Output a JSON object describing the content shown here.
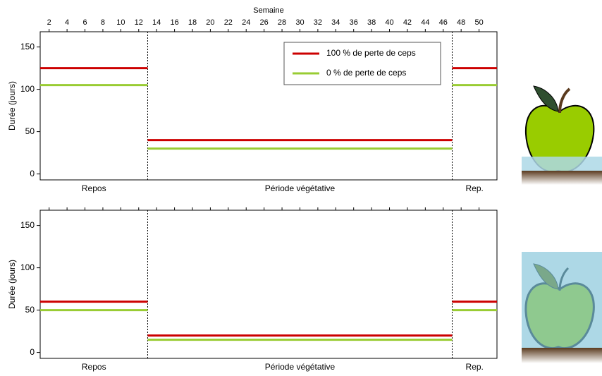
{
  "chart_data": [
    {
      "type": "line",
      "xlabel": "Semaine",
      "ylabel": "Durée (jours)",
      "xlim": [
        1,
        52
      ],
      "ylim": [
        -7,
        168
      ],
      "xticks": [
        2,
        4,
        6,
        8,
        10,
        12,
        14,
        16,
        18,
        20,
        22,
        24,
        26,
        28,
        30,
        32,
        34,
        36,
        38,
        40,
        42,
        44,
        46,
        48,
        50
      ],
      "xtick_labels": true,
      "yticks": [
        0,
        50,
        100,
        150
      ],
      "legend": "upper right",
      "periods": [
        {
          "label": "Repos",
          "start": 1,
          "end": 13
        },
        {
          "label": "Période végétative",
          "start": 13,
          "end": 47
        },
        {
          "label": "Rep.",
          "start": 47,
          "end": 52
        }
      ],
      "series": [
        {
          "name": "100 % de perte de ceps",
          "color": "#cc0000",
          "values": [
            125,
            40,
            125
          ]
        },
        {
          "name": "0 % de perte de ceps",
          "color": "#99cc33",
          "values": [
            105,
            30,
            105
          ]
        }
      ]
    },
    {
      "type": "line",
      "ylabel": "Durée (jours)",
      "xlim": [
        1,
        52
      ],
      "ylim": [
        -7,
        168
      ],
      "xticks": [
        2,
        4,
        6,
        8,
        10,
        12,
        14,
        16,
        18,
        20,
        22,
        24,
        26,
        28,
        30,
        32,
        34,
        36,
        38,
        40,
        42,
        44,
        46,
        48,
        50
      ],
      "xtick_labels": false,
      "yticks": [
        0,
        50,
        100,
        150
      ],
      "periods": [
        {
          "label": "Repos",
          "start": 1,
          "end": 13
        },
        {
          "label": "Période végétative",
          "start": 13,
          "end": 47
        },
        {
          "label": "Rep.",
          "start": 47,
          "end": 52
        }
      ],
      "series": [
        {
          "color": "#cc0000",
          "values": [
            60,
            20,
            60
          ]
        },
        {
          "color": "#99cc33",
          "values": [
            50,
            15,
            50
          ]
        }
      ]
    }
  ]
}
